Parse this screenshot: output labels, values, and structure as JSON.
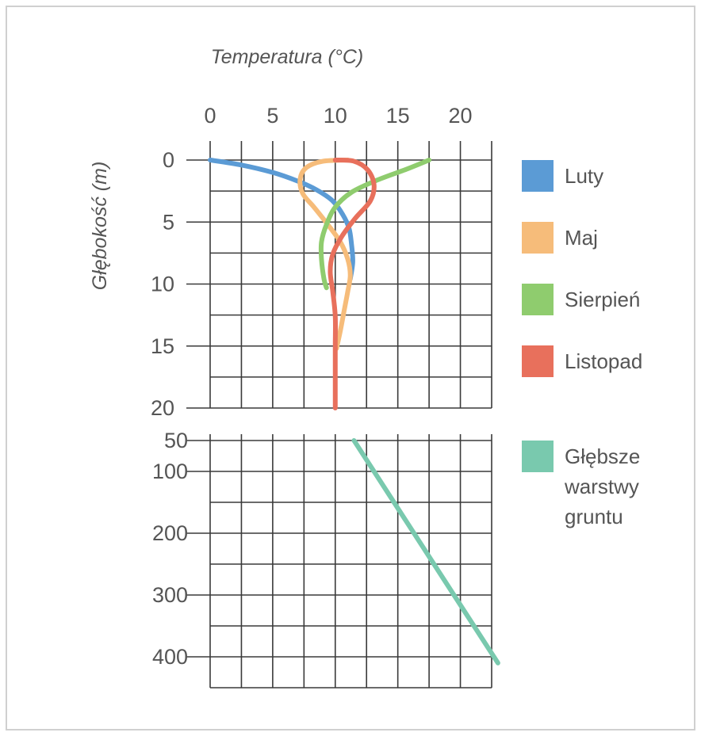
{
  "chart_data": {
    "type": "line",
    "xlabel": "Temperatura (°C)",
    "ylabel": "Głębokość (m)",
    "x_ticks": [
      0,
      5,
      10,
      15,
      20
    ],
    "xlim": [
      0,
      22.5
    ],
    "upper_panel": {
      "ylim": [
        0,
        20
      ],
      "y_ticks": [
        0,
        5,
        10,
        15,
        20
      ],
      "series": [
        {
          "name": "Luty",
          "color": "#5b9bd5",
          "points": [
            [
              0,
              0
            ],
            [
              2.5,
              0.4
            ],
            [
              5,
              1
            ],
            [
              7,
              1.7
            ],
            [
              8.5,
              2.4
            ],
            [
              9.8,
              3.3
            ],
            [
              10.6,
              4.4
            ],
            [
              11.1,
              5.5
            ],
            [
              11.3,
              6.8
            ],
            [
              11.4,
              8.2
            ],
            [
              11.2,
              9.6
            ]
          ]
        },
        {
          "name": "Maj",
          "color": "#f6bc7a",
          "points": [
            [
              11,
              0
            ],
            [
              9,
              0.1
            ],
            [
              7.7,
              0.6
            ],
            [
              7.2,
              1.5
            ],
            [
              7.4,
              2.7
            ],
            [
              8.3,
              3.8
            ],
            [
              9.4,
              5.2
            ],
            [
              10.4,
              6.6
            ],
            [
              11,
              8
            ],
            [
              11.2,
              9.3
            ],
            [
              11,
              10.6
            ],
            [
              10.7,
              12.2
            ],
            [
              10.4,
              13.8
            ],
            [
              10.1,
              15.2
            ]
          ]
        },
        {
          "name": "Sierpień",
          "color": "#8fcc6e",
          "points": [
            [
              17.5,
              0
            ],
            [
              15.8,
              0.7
            ],
            [
              13.4,
              1.6
            ],
            [
              11.3,
              2.6
            ],
            [
              10,
              3.8
            ],
            [
              9.3,
              5.2
            ],
            [
              8.9,
              6.6
            ],
            [
              8.9,
              8
            ],
            [
              9.1,
              9.6
            ],
            [
              9.3,
              10.3
            ]
          ]
        },
        {
          "name": "Listopad",
          "color": "#e8705c",
          "points": [
            [
              10,
              0
            ],
            [
              11.5,
              0.1
            ],
            [
              12.6,
              0.8
            ],
            [
              13.1,
              2
            ],
            [
              12.8,
              3.3
            ],
            [
              11.6,
              4.7
            ],
            [
              10.5,
              6.2
            ],
            [
              9.8,
              7.6
            ],
            [
              9.6,
              9
            ],
            [
              9.8,
              10.6
            ],
            [
              10,
              12.6
            ],
            [
              10,
              15
            ],
            [
              10,
              17.6
            ],
            [
              10,
              20
            ]
          ]
        }
      ]
    },
    "lower_panel": {
      "ylim": [
        50,
        450
      ],
      "y_ticks": [
        50,
        100,
        200,
        300,
        400
      ],
      "series": [
        {
          "name": "Głębsze warstwy gruntu",
          "color": "#79c9ae",
          "points": [
            [
              11.5,
              50
            ],
            [
              23,
              410
            ]
          ]
        }
      ]
    },
    "legend": {
      "placement": "right",
      "entries": [
        {
          "label": "Luty",
          "color": "#5b9bd5"
        },
        {
          "label": "Maj",
          "color": "#f6bc7a"
        },
        {
          "label": "Sierpień",
          "color": "#8fcc6e"
        },
        {
          "label": "Listopad",
          "color": "#e8705c"
        },
        {
          "label_lines": [
            "Głębsze",
            "warstwy",
            "gruntu"
          ],
          "color": "#79c9ae"
        }
      ]
    },
    "grid": true
  }
}
